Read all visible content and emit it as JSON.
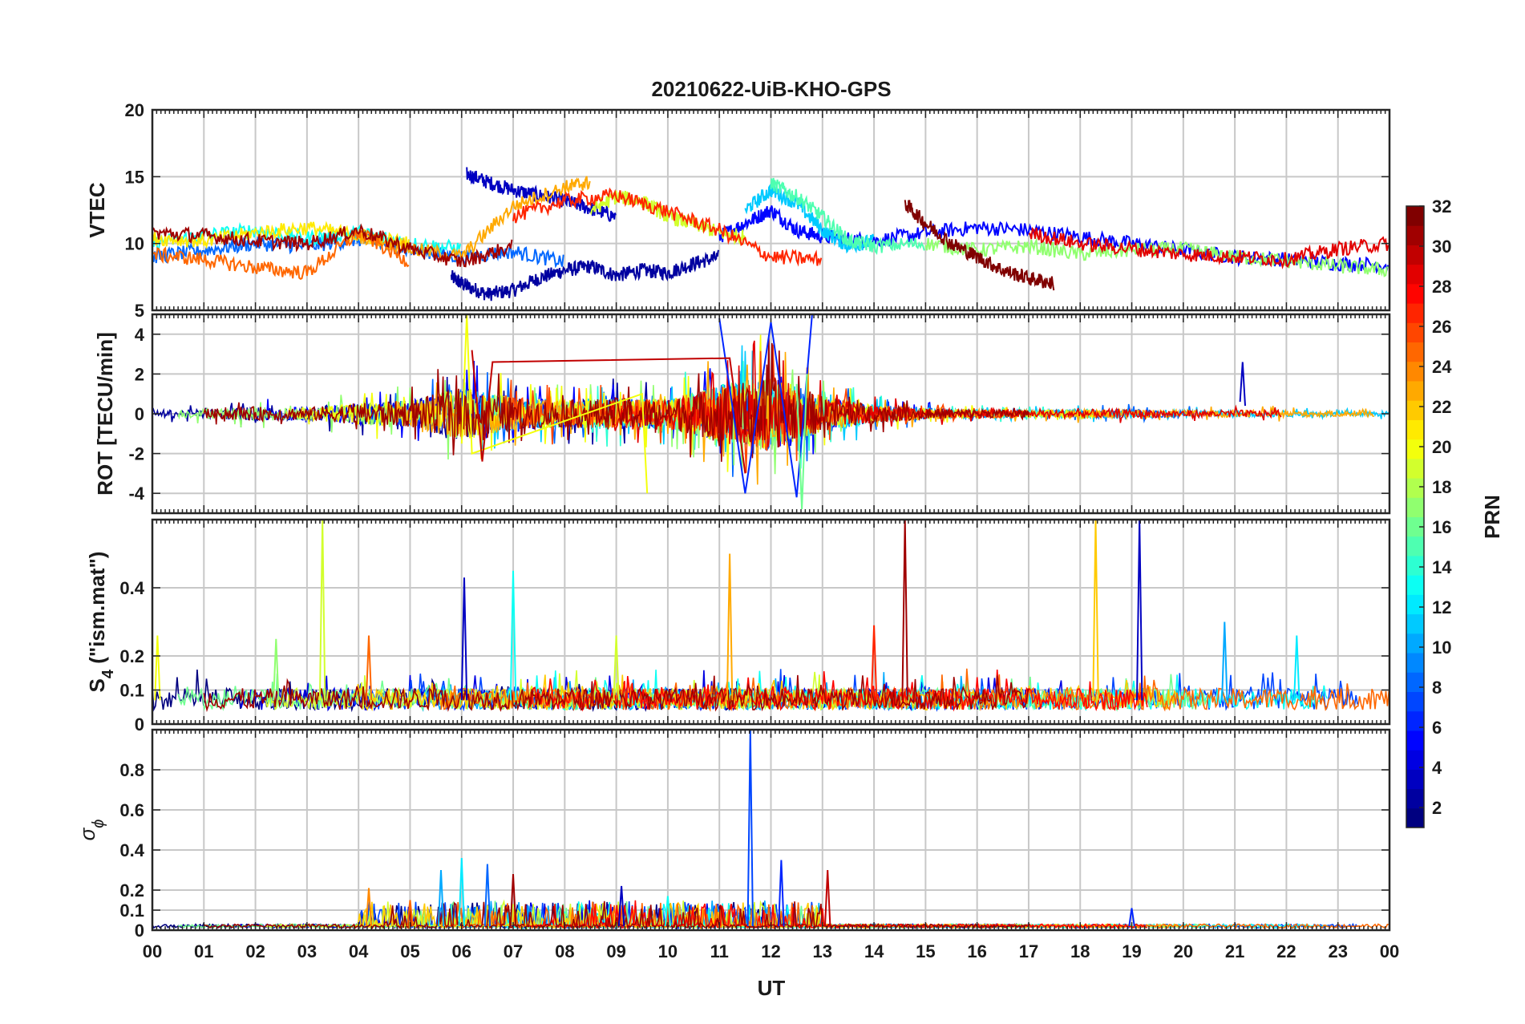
{
  "chart_data": {
    "type": "line",
    "title": "20210622-UiB-KHO-GPS",
    "xlabel": "UT",
    "x_tick_labels": [
      "00",
      "01",
      "02",
      "03",
      "04",
      "05",
      "06",
      "07",
      "08",
      "09",
      "10",
      "11",
      "12",
      "13",
      "14",
      "15",
      "16",
      "17",
      "18",
      "19",
      "20",
      "21",
      "22",
      "23",
      "00"
    ],
    "xlim": [
      0,
      24
    ],
    "grid": true,
    "colorbar": {
      "label": "PRN",
      "range": [
        1,
        32
      ],
      "tick_labels": [
        "2",
        "4",
        "6",
        "8",
        "10",
        "12",
        "14",
        "16",
        "18",
        "20",
        "22",
        "24",
        "26",
        "28",
        "30",
        "32"
      ],
      "tick_values": [
        2,
        4,
        6,
        8,
        10,
        12,
        14,
        16,
        18,
        20,
        22,
        24,
        26,
        28,
        30,
        32
      ],
      "colormap": "jet",
      "colors": [
        "#00008f",
        "#0000ff",
        "#0080ff",
        "#00ffff",
        "#80ff80",
        "#ffff00",
        "#ff8000",
        "#ff0000",
        "#800000"
      ]
    },
    "panels": [
      {
        "id": "vtec",
        "ylabel": "VTEC",
        "ylim": [
          5,
          20
        ],
        "y_ticks": [
          5,
          10,
          15,
          20
        ],
        "y_tick_labels": [
          "5",
          "10",
          "15",
          "20"
        ],
        "series": [
          {
            "prn": 2,
            "x": [
              5.8,
              6.1,
              6.5,
              7.0,
              7.5,
              8.0,
              8.5,
              9.0,
              9.5,
              10.0,
              10.5,
              11.0
            ],
            "y": [
              7.5,
              6.8,
              6.2,
              6.5,
              7.4,
              8.0,
              8.3,
              7.6,
              8.0,
              7.8,
              8.5,
              9.0
            ]
          },
          {
            "prn": 3,
            "x": [
              6.1,
              6.5,
              7.0,
              7.5,
              8.0,
              8.5,
              9.0
            ],
            "y": [
              15.2,
              14.6,
              14.0,
              13.6,
              13.2,
              12.6,
              12.0
            ]
          },
          {
            "prn": 5,
            "x": [
              11.0,
              11.5,
              12.0,
              12.5,
              13.0,
              14.0,
              15.0,
              16.0,
              17.0,
              18.0,
              19.0,
              20.0,
              21.0,
              22.0,
              23.0,
              24.0
            ],
            "y": [
              10.5,
              11.5,
              12.5,
              11.0,
              10.5,
              10.2,
              10.8,
              11.2,
              11.0,
              10.5,
              10.0,
              9.5,
              9.0,
              8.8,
              8.5,
              8.4
            ]
          },
          {
            "prn": 8,
            "x": [
              0.0,
              1.0,
              2.0,
              3.0,
              4.0,
              5.0,
              6.0,
              7.0,
              8.0
            ],
            "y": [
              9.0,
              9.5,
              10.0,
              9.8,
              10.3,
              9.5,
              9.0,
              9.4,
              8.6
            ]
          },
          {
            "prn": 11,
            "x": [
              11.5,
              12.0,
              12.5,
              13.0,
              13.5,
              14.0
            ],
            "y": [
              12.5,
              14.0,
              13.0,
              11.0,
              9.8,
              10.2
            ]
          },
          {
            "prn": 13,
            "x": [
              0.0,
              1.0,
              2.0,
              3.0,
              4.0,
              5.0,
              6.0
            ],
            "y": [
              10.0,
              10.6,
              11.0,
              10.4,
              10.8,
              10.0,
              9.6
            ]
          },
          {
            "prn": 15,
            "x": [
              12.0,
              12.5,
              13.0,
              13.5,
              14.0,
              15.0
            ],
            "y": [
              14.5,
              13.5,
              12.0,
              10.2,
              9.8,
              10.0
            ]
          },
          {
            "prn": 17,
            "x": [
              15.0,
              16.0,
              17.0,
              18.0,
              19.0,
              20.0,
              21.0,
              22.0,
              23.0,
              24.0
            ],
            "y": [
              10.0,
              9.5,
              9.8,
              9.2,
              9.5,
              9.6,
              9.0,
              8.7,
              8.3,
              8.0
            ]
          },
          {
            "prn": 19,
            "x": [
              8.5,
              9.0,
              9.5,
              10.0,
              10.5,
              11.0,
              11.5
            ],
            "y": [
              12.5,
              13.5,
              13.2,
              12.0,
              11.5,
              10.8,
              10.5
            ]
          },
          {
            "prn": 21,
            "x": [
              0.0,
              1.0,
              2.0,
              3.0,
              4.0,
              5.0
            ],
            "y": [
              10.4,
              10.2,
              10.8,
              11.2,
              10.6,
              10.0
            ]
          },
          {
            "prn": 23,
            "x": [
              4.0,
              5.0,
              6.0,
              7.0,
              8.0,
              8.5
            ],
            "y": [
              10.6,
              9.6,
              9.0,
              12.8,
              14.2,
              14.6
            ]
          },
          {
            "prn": 25,
            "x": [
              0.0,
              1.0,
              2.0,
              3.0,
              4.0,
              5.0
            ],
            "y": [
              9.2,
              8.8,
              8.2,
              7.8,
              10.8,
              8.6
            ]
          },
          {
            "prn": 27,
            "x": [
              7.0,
              8.0,
              9.0,
              10.0,
              11.0,
              12.0,
              13.0
            ],
            "y": [
              12.0,
              13.2,
              13.6,
              12.4,
              11.0,
              9.0,
              8.8
            ]
          },
          {
            "prn": 29,
            "x": [
              17.0,
              18.0,
              19.0,
              20.0,
              21.0,
              22.0,
              23.0,
              24.0
            ],
            "y": [
              10.8,
              10.0,
              9.6,
              9.2,
              9.0,
              8.8,
              9.6,
              10.0
            ]
          },
          {
            "prn": 31,
            "x": [
              0.0,
              1.0,
              2.0,
              3.0,
              4.0,
              5.0,
              6.0,
              7.0
            ],
            "y": [
              10.8,
              10.6,
              10.2,
              10.0,
              11.0,
              9.6,
              8.6,
              9.8
            ]
          },
          {
            "prn": 32,
            "x": [
              14.6,
              15.0,
              15.5,
              16.0,
              16.5,
              17.0,
              17.5
            ],
            "y": [
              13.0,
              11.5,
              10.0,
              9.0,
              8.0,
              7.4,
              7.0
            ]
          }
        ]
      },
      {
        "id": "rot",
        "ylabel": "ROT [TECU/min]",
        "ylim": [
          -5,
          5
        ],
        "y_ticks": [
          -4,
          -2,
          0,
          2,
          4
        ],
        "y_tick_labels": [
          "-4",
          "-2",
          "0",
          "2",
          "4"
        ],
        "description_values": {
          "envelope_x": [
            0,
            1,
            2,
            3,
            4,
            5,
            6,
            7,
            8,
            9,
            10,
            11,
            12,
            13,
            14,
            15,
            16,
            17,
            18,
            19,
            20,
            21,
            22,
            23,
            24
          ],
          "envelope_amp": [
            0.4,
            0.5,
            0.8,
            0.7,
            1.2,
            1.5,
            3.0,
            1.8,
            1.5,
            1.8,
            1.6,
            3.2,
            4.2,
            2.0,
            1.0,
            0.6,
            0.5,
            0.4,
            0.5,
            0.5,
            0.4,
            0.4,
            0.4,
            0.3,
            0.3
          ]
        },
        "series": [
          {
            "prn": 3,
            "x": [
              21.1,
              21.15,
              21.2
            ],
            "y": [
              0.6,
              2.6,
              0.4
            ]
          },
          {
            "prn": 6,
            "x": [
              11.0,
              11.5,
              12.0,
              12.5,
              12.8
            ],
            "y": [
              4.8,
              -4.0,
              4.6,
              -4.2,
              5.0
            ]
          },
          {
            "prn": 20,
            "x": [
              6.0,
              6.1,
              6.2,
              9.5,
              9.6
            ],
            "y": [
              -1.5,
              5.0,
              -2.0,
              1.0,
              -4.0
            ]
          },
          {
            "prn": 16,
            "x": [
              12.5,
              12.6,
              12.7
            ],
            "y": [
              1.5,
              -4.8,
              2.0
            ]
          },
          {
            "prn": 30,
            "x": [
              6.2,
              6.4,
              6.6,
              11.2,
              11.5
            ],
            "y": [
              3.2,
              -2.4,
              2.6,
              2.8,
              -3.0
            ]
          }
        ]
      },
      {
        "id": "s4",
        "ylabel": "S4 (\"ism.mat\")",
        "ylabel_main": "S",
        "ylabel_sub": "4",
        "ylabel_rest": " (\"ism.mat\")",
        "ylim": [
          0,
          0.6
        ],
        "y_ticks": [
          0,
          0.1,
          0.2,
          0.4
        ],
        "y_tick_labels": [
          "0",
          "0.1",
          "0.2",
          "0.4"
        ],
        "baseline": 0.07,
        "spikes": [
          {
            "prn": 19,
            "x": 3.3,
            "y": 0.6
          },
          {
            "prn": 3,
            "x": 6.05,
            "y": 0.43
          },
          {
            "prn": 13,
            "x": 7.0,
            "y": 0.45
          },
          {
            "prn": 23,
            "x": 11.2,
            "y": 0.5
          },
          {
            "prn": 27,
            "x": 14.0,
            "y": 0.29
          },
          {
            "prn": 31,
            "x": 14.6,
            "y": 0.6
          },
          {
            "prn": 25,
            "x": 4.2,
            "y": 0.26
          },
          {
            "prn": 22,
            "x": 18.3,
            "y": 0.6
          },
          {
            "prn": 3,
            "x": 19.15,
            "y": 0.6
          },
          {
            "prn": 10,
            "x": 20.8,
            "y": 0.3
          },
          {
            "prn": 12,
            "x": 22.2,
            "y": 0.26
          },
          {
            "prn": 17,
            "x": 2.4,
            "y": 0.25
          },
          {
            "prn": 20,
            "x": 0.1,
            "y": 0.26
          },
          {
            "prn": 19,
            "x": 9.0,
            "y": 0.26
          }
        ]
      },
      {
        "id": "sigma_phi",
        "ylabel": "σ ϕ",
        "ylabel_main": "σ",
        "ylabel_sub": "ϕ",
        "ylim": [
          0,
          1
        ],
        "y_ticks": [
          0,
          0.1,
          0.2,
          0.4,
          0.6,
          0.8
        ],
        "y_tick_labels": [
          "0",
          "0.1",
          "0.2",
          "0.4",
          "0.6",
          "0.8"
        ],
        "baseline": 0.02,
        "spikes": [
          {
            "prn": 7,
            "x": 11.6,
            "y": 1.0
          },
          {
            "prn": 10,
            "x": 5.6,
            "y": 0.3
          },
          {
            "prn": 12,
            "x": 6.0,
            "y": 0.36
          },
          {
            "prn": 8,
            "x": 6.5,
            "y": 0.33
          },
          {
            "prn": 31,
            "x": 7.0,
            "y": 0.28
          },
          {
            "prn": 3,
            "x": 9.1,
            "y": 0.22
          },
          {
            "prn": 6,
            "x": 12.2,
            "y": 0.35
          },
          {
            "prn": 30,
            "x": 13.1,
            "y": 0.3
          },
          {
            "prn": 24,
            "x": 4.2,
            "y": 0.21
          },
          {
            "prn": 25,
            "x": 5.0,
            "y": 0.15
          },
          {
            "prn": 13,
            "x": 10.0,
            "y": 0.17
          },
          {
            "prn": 6,
            "x": 19.0,
            "y": 0.11
          }
        ]
      }
    ]
  }
}
